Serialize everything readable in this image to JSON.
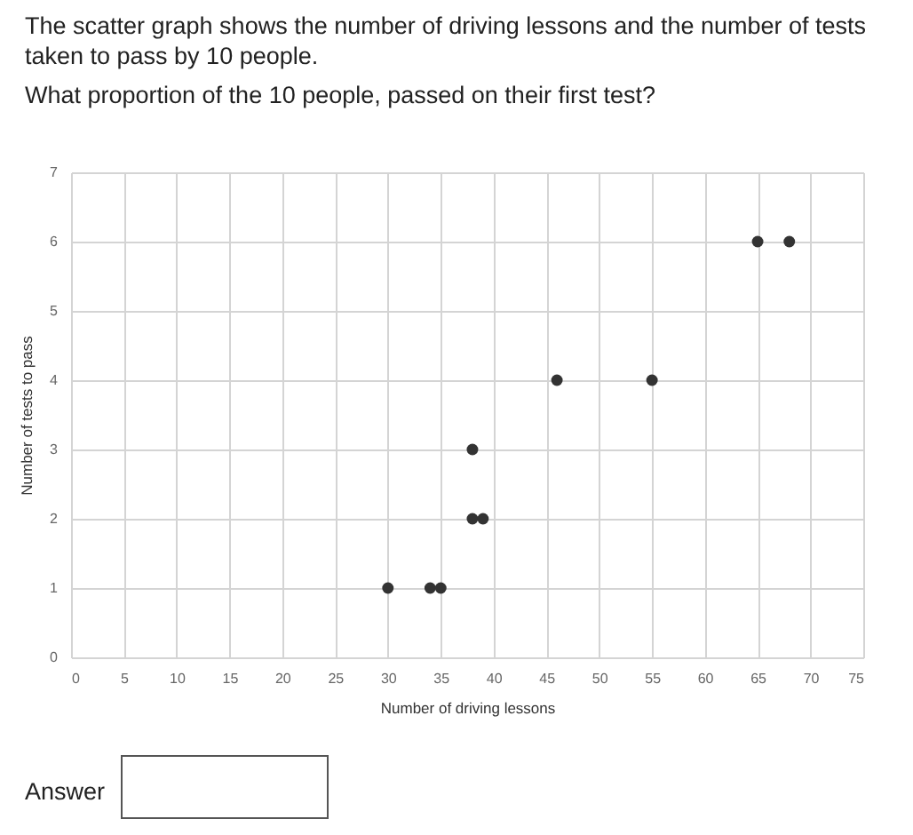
{
  "chart_data": {
    "type": "scatter",
    "title": "The scatter graph shows the number of driving lessons and the number of tests taken to pass by 10 people.",
    "subtitle": "What proportion of the 10 people, passed on their first test?",
    "xlabel": "Number of driving lessons",
    "ylabel": "Number of tests to pass",
    "annotations": [
      "Answer"
    ],
    "x": [
      30,
      34,
      35,
      38,
      39,
      38,
      46,
      55,
      65,
      68
    ],
    "series": [
      {
        "color": "#333333",
        "values": [
          1,
          1,
          1,
          2,
          2,
          3,
          4,
          4,
          6,
          6
        ]
      }
    ],
    "xlim": [
      0,
      75
    ],
    "xticks": [
      0,
      5,
      10,
      15,
      20,
      25,
      30,
      35,
      40,
      45,
      50,
      55,
      60,
      65,
      70,
      75
    ],
    "ylim": [
      0,
      7
    ],
    "yticks": [
      0,
      1,
      2,
      3,
      4,
      5,
      6,
      7
    ],
    "grid": true,
    "marker": "circle"
  }
}
